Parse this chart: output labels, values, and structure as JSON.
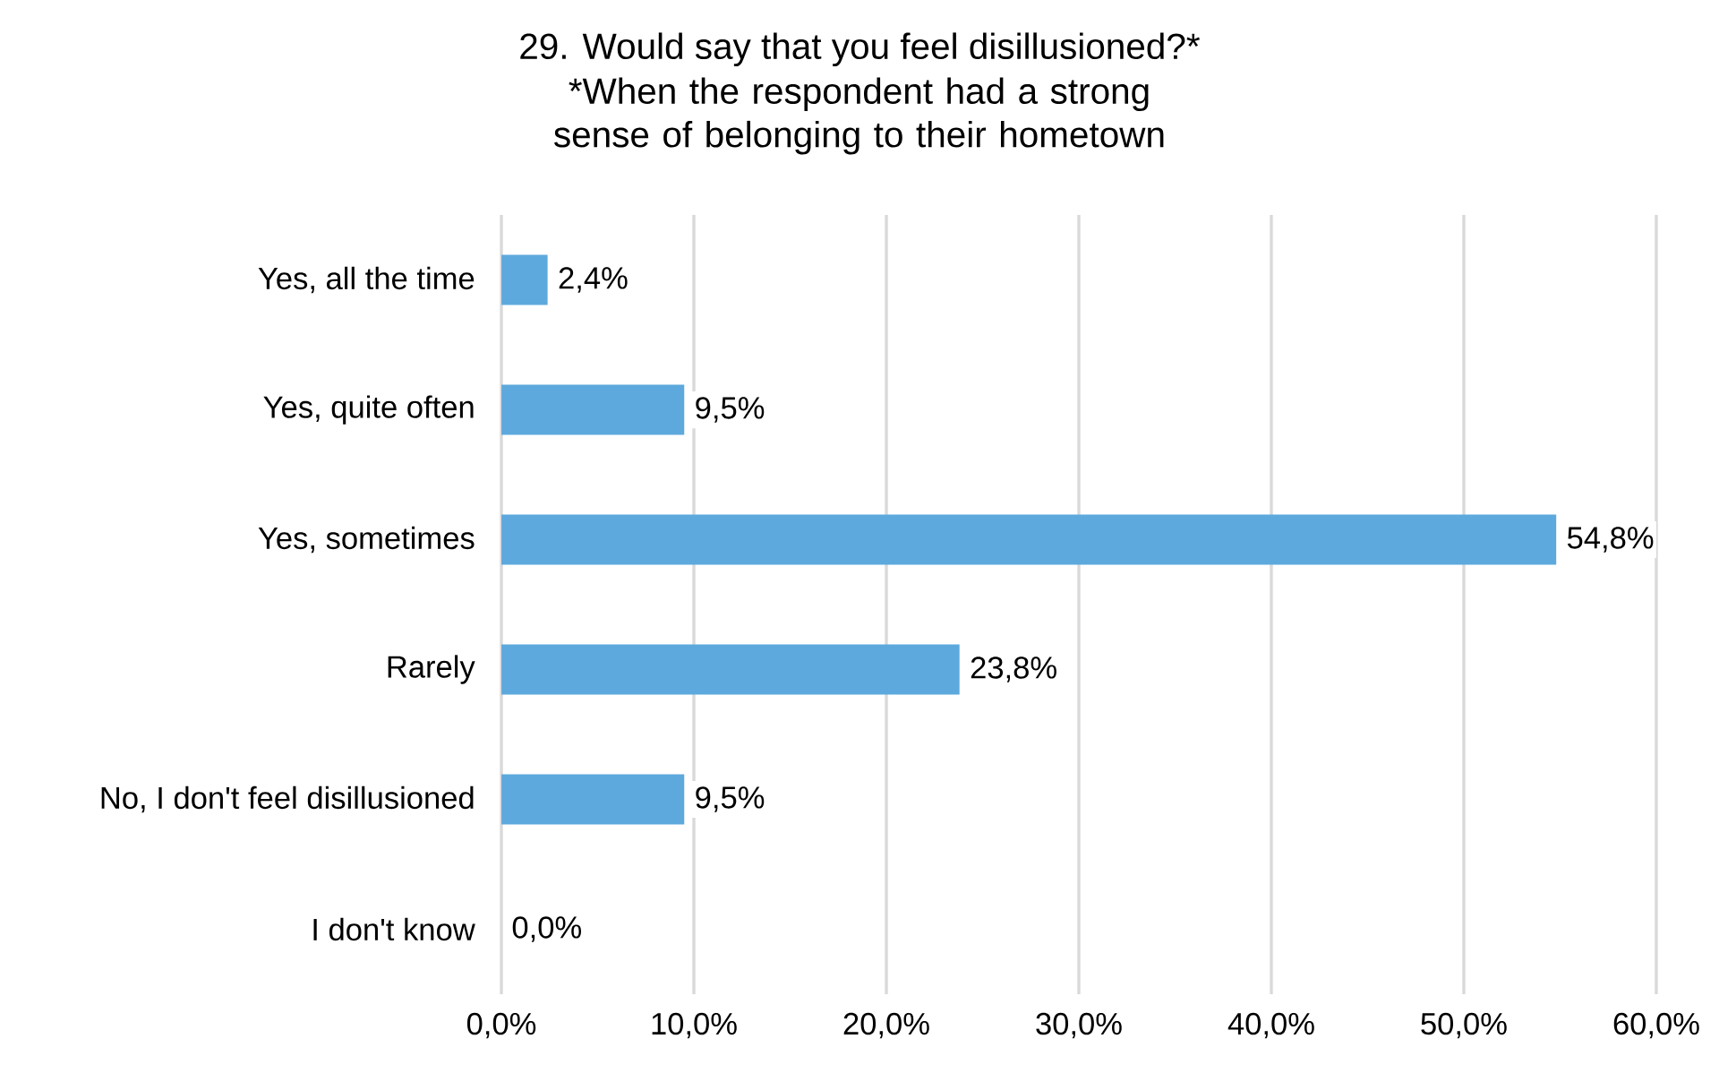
{
  "chart_data": {
    "type": "bar",
    "orientation": "horizontal",
    "title": "29. Would say that you feel disillusioned?*",
    "subtitle": "*When the respondent had a strong sense of belonging to their hometown",
    "categories": [
      "Yes, all the time",
      "Yes, quite often",
      "Yes, sometimes",
      "Rarely",
      "No, I don't feel disillusioned",
      "I don't know"
    ],
    "values": [
      2.4,
      9.5,
      54.8,
      23.8,
      9.5,
      0.0
    ],
    "value_labels": [
      "2,4%",
      "9,5%",
      "54,8%",
      "23,8%",
      "9,5%",
      "0,0%"
    ],
    "color": "#5da9dd",
    "xlim": [
      0,
      60
    ],
    "xticks": [
      {
        "value": 0,
        "label": "0,0%"
      },
      {
        "value": 10,
        "label": "10,0%"
      },
      {
        "value": 20,
        "label": "20,0%"
      },
      {
        "value": 30,
        "label": "30,0%"
      },
      {
        "value": 40,
        "label": "40,0%"
      },
      {
        "value": 50,
        "label": "50,0%"
      },
      {
        "value": 60,
        "label": "60,0%"
      }
    ],
    "grid": "x"
  }
}
